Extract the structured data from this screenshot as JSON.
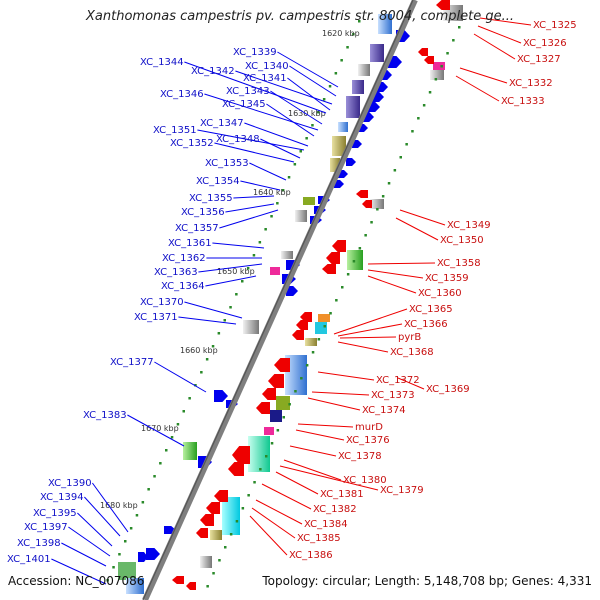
{
  "title": "Xanthomonas campestris pv. campestris str. 8004, complete ge...",
  "footer": {
    "accession": "Accession: NC_007086",
    "summary": "Topology: circular; Length: 5,148,708 bp; Genes: 4,331"
  },
  "colors": {
    "forward": "#0000ee",
    "reverse": "#ee0000",
    "backbone": "#7f7f7f",
    "tick": "#2a8a2a"
  },
  "kbp_marks": [
    "1620 kbp",
    "1630 kbp",
    "1640 kbp",
    "1650 kbp",
    "1660 kbp",
    "1670 kbp",
    "1680 kbp"
  ],
  "left_labels": [
    "XC_1339",
    "XC_1340",
    "XC_1344",
    "XC_1342",
    "XC_1341",
    "XC_1343",
    "XC_1346",
    "XC_1345",
    "XC_1347",
    "XC_1351",
    "XC_1348",
    "XC_1352",
    "XC_1353",
    "XC_1354",
    "XC_1355",
    "XC_1356",
    "XC_1357",
    "XC_1361",
    "XC_1362",
    "XC_1363",
    "XC_1364",
    "XC_1370",
    "XC_1371",
    "XC_1377",
    "XC_1383",
    "XC_1390",
    "XC_1394",
    "XC_1395",
    "XC_1397",
    "XC_1398",
    "XC_1401"
  ],
  "right_labels": [
    "XC_1325",
    "XC_1326",
    "XC_1327",
    "XC_1332",
    "XC_1333",
    "XC_1349",
    "XC_1350",
    "XC_1358",
    "XC_1359",
    "XC_1360",
    "XC_1365",
    "XC_1366",
    "pyrB",
    "XC_1368",
    "XC_1372",
    "XC_1369",
    "XC_1373",
    "XC_1374",
    "murD",
    "XC_1376",
    "XC_1378",
    "XC_1380",
    "XC_1379",
    "XC_1381",
    "XC_1382",
    "XC_1384",
    "XC_1385",
    "XC_1386"
  ]
}
